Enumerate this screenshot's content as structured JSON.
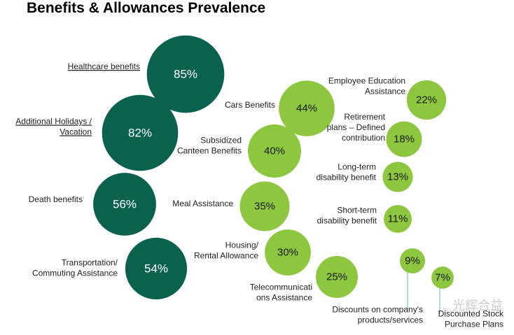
{
  "chart_data": {
    "type": "bubble",
    "title": "Benefits & Allowances Prevalence",
    "unit": "%",
    "colors": {
      "dark": "#0b6150",
      "light": "#8dc63f",
      "leader_line": "#5fb4c8"
    },
    "items": [
      {
        "label_lines": [
          "Healthcare benefits"
        ],
        "value": 85,
        "tone": "dark"
      },
      {
        "label_lines": [
          "Additional Holidays /",
          "Vacation"
        ],
        "value": 82,
        "tone": "dark"
      },
      {
        "label_lines": [
          "Death  benefits"
        ],
        "value": 56,
        "tone": "dark"
      },
      {
        "label_lines": [
          "Transportation/",
          "Commuting Assistance"
        ],
        "value": 54,
        "tone": "dark"
      },
      {
        "label_lines": [
          "Cars Benefits"
        ],
        "value": 44,
        "tone": "light"
      },
      {
        "label_lines": [
          "Subsidized",
          "Canteen Benefits"
        ],
        "value": 40,
        "tone": "light"
      },
      {
        "label_lines": [
          "Meal Assistance"
        ],
        "value": 35,
        "tone": "light"
      },
      {
        "label_lines": [
          "Housing/",
          "Rental Allowance"
        ],
        "value": 30,
        "tone": "light"
      },
      {
        "label_lines": [
          "Telecommunicati",
          "ons Assistance"
        ],
        "value": 25,
        "tone": "light"
      },
      {
        "label_lines": [
          "Employee Education",
          "Assistance"
        ],
        "value": 22,
        "tone": "light"
      },
      {
        "label_lines": [
          "Retirement",
          "plans – Defined",
          "contribution"
        ],
        "value": 18,
        "tone": "light"
      },
      {
        "label_lines": [
          "Long-term",
          "disability benefit"
        ],
        "value": 13,
        "tone": "light"
      },
      {
        "label_lines": [
          "Short-term",
          "disability benefit"
        ],
        "value": 11,
        "tone": "light"
      },
      {
        "label_lines": [
          "Discounts on company's",
          "products/services"
        ],
        "value": 9,
        "tone": "light"
      },
      {
        "label_lines": [
          "Discounted Stock",
          "Purchase Plans"
        ],
        "value": 7,
        "tone": "light"
      }
    ]
  },
  "watermark": "光辉合益"
}
